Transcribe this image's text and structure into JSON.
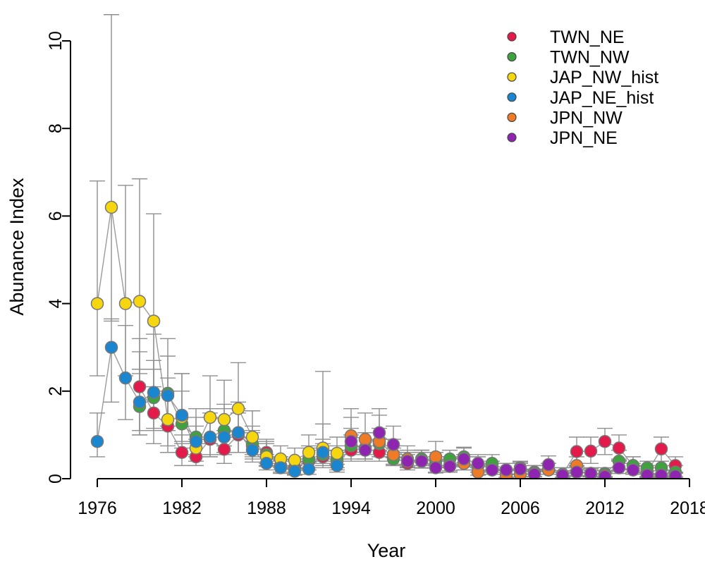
{
  "chart_data": {
    "type": "scatter",
    "title": "",
    "xlabel": "Year",
    "ylabel": "Abunance Index",
    "xlim": [
      1976,
      2018
    ],
    "ylim": [
      0,
      10
    ],
    "x_ticks": [
      1976,
      1982,
      1988,
      1994,
      2000,
      2006,
      2012,
      2018
    ],
    "y_ticks": [
      0,
      2,
      4,
      6,
      8,
      10
    ],
    "grid": false,
    "legend_position": "top-right",
    "series": [
      {
        "name": "TWN_NE",
        "color": "#e41a4a",
        "points": [
          {
            "x": 1979,
            "y": 2.1,
            "lo": 1.1,
            "hi": 3.2
          },
          {
            "x": 1980,
            "y": 1.5,
            "lo": 0.8,
            "hi": 2.5
          },
          {
            "x": 1981,
            "y": 1.2,
            "lo": 0.6,
            "hi": 2.0
          },
          {
            "x": 1982,
            "y": 0.6,
            "lo": 0.3,
            "hi": 1.0
          },
          {
            "x": 1983,
            "y": 0.5,
            "lo": 0.3,
            "hi": 0.9
          },
          {
            "x": 1984,
            "y": 0.9,
            "lo": 0.5,
            "hi": 1.4
          },
          {
            "x": 1985,
            "y": 0.67,
            "lo": 0.35,
            "hi": 1.1
          },
          {
            "x": 1986,
            "y": 1.0,
            "lo": 0.6,
            "hi": 1.5
          },
          {
            "x": 1987,
            "y": 0.75,
            "lo": 0.45,
            "hi": 1.1
          },
          {
            "x": 1988,
            "y": 0.6,
            "lo": 0.35,
            "hi": 0.9
          },
          {
            "x": 1989,
            "y": 0.3,
            "lo": 0.15,
            "hi": 0.5
          },
          {
            "x": 1990,
            "y": 0.25,
            "lo": 0.1,
            "hi": 0.45
          },
          {
            "x": 1991,
            "y": 0.4,
            "lo": 0.2,
            "hi": 0.7
          },
          {
            "x": 1992,
            "y": 0.5,
            "lo": 0.25,
            "hi": 0.8
          },
          {
            "x": 1993,
            "y": 0.4,
            "lo": 0.2,
            "hi": 0.65
          },
          {
            "x": 1994,
            "y": 0.65,
            "lo": 0.4,
            "hi": 1.0
          },
          {
            "x": 1995,
            "y": 0.7,
            "lo": 0.45,
            "hi": 1.05
          },
          {
            "x": 1996,
            "y": 0.6,
            "lo": 0.4,
            "hi": 0.9
          },
          {
            "x": 1997,
            "y": 0.5,
            "lo": 0.3,
            "hi": 0.75
          },
          {
            "x": 1998,
            "y": 0.35,
            "lo": 0.2,
            "hi": 0.55
          },
          {
            "x": 1999,
            "y": 0.4,
            "lo": 0.25,
            "hi": 0.6
          },
          {
            "x": 2000,
            "y": 0.3,
            "lo": 0.15,
            "hi": 0.5
          },
          {
            "x": 2001,
            "y": 0.3,
            "lo": 0.15,
            "hi": 0.5
          },
          {
            "x": 2002,
            "y": 0.35,
            "lo": 0.2,
            "hi": 0.55
          },
          {
            "x": 2003,
            "y": 0.3,
            "lo": 0.15,
            "hi": 0.5
          },
          {
            "x": 2004,
            "y": 0.25,
            "lo": 0.1,
            "hi": 0.4
          },
          {
            "x": 2005,
            "y": 0.2,
            "lo": 0.1,
            "hi": 0.35
          },
          {
            "x": 2006,
            "y": 0.2,
            "lo": 0.1,
            "hi": 0.35
          },
          {
            "x": 2007,
            "y": 0.15,
            "lo": 0.05,
            "hi": 0.3
          },
          {
            "x": 2008,
            "y": 0.2,
            "lo": 0.1,
            "hi": 0.35
          },
          {
            "x": 2009,
            "y": 0.1,
            "lo": 0.03,
            "hi": 0.25
          },
          {
            "x": 2010,
            "y": 0.62,
            "lo": 0.35,
            "hi": 0.95
          },
          {
            "x": 2011,
            "y": 0.63,
            "lo": 0.35,
            "hi": 0.95
          },
          {
            "x": 2012,
            "y": 0.85,
            "lo": 0.55,
            "hi": 1.15
          },
          {
            "x": 2013,
            "y": 0.7,
            "lo": 0.45,
            "hi": 1.0
          },
          {
            "x": 2014,
            "y": 0.3,
            "lo": 0.15,
            "hi": 0.5
          },
          {
            "x": 2015,
            "y": 0.15,
            "lo": 0.05,
            "hi": 0.3
          },
          {
            "x": 2016,
            "y": 0.68,
            "lo": 0.4,
            "hi": 0.95
          },
          {
            "x": 2017,
            "y": 0.3,
            "lo": 0.15,
            "hi": 0.5
          }
        ]
      },
      {
        "name": "TWN_NW",
        "color": "#3ea33e",
        "points": [
          {
            "x": 1979,
            "y": 1.65,
            "lo": 1.0,
            "hi": 2.5
          },
          {
            "x": 1980,
            "y": 1.85,
            "lo": 1.1,
            "hi": 2.7
          },
          {
            "x": 1981,
            "y": 1.95,
            "lo": 1.2,
            "hi": 2.8
          },
          {
            "x": 1982,
            "y": 1.25,
            "lo": 0.7,
            "hi": 2.0
          },
          {
            "x": 1983,
            "y": 0.95,
            "lo": 0.5,
            "hi": 1.6
          },
          {
            "x": 1984,
            "y": 0.95,
            "lo": 0.5,
            "hi": 1.5
          },
          {
            "x": 1985,
            "y": 1.1,
            "lo": 0.6,
            "hi": 1.7
          },
          {
            "x": 1986,
            "y": 1.05,
            "lo": 0.6,
            "hi": 1.6
          },
          {
            "x": 1987,
            "y": 0.8,
            "lo": 0.5,
            "hi": 1.2
          },
          {
            "x": 1988,
            "y": 0.55,
            "lo": 0.3,
            "hi": 0.85
          },
          {
            "x": 1989,
            "y": 0.3,
            "lo": 0.15,
            "hi": 0.5
          },
          {
            "x": 1990,
            "y": 0.2,
            "lo": 0.1,
            "hi": 0.4
          },
          {
            "x": 1991,
            "y": 0.45,
            "lo": 0.25,
            "hi": 0.75
          },
          {
            "x": 1992,
            "y": 0.55,
            "lo": 0.3,
            "hi": 0.9
          },
          {
            "x": 1993,
            "y": 0.45,
            "lo": 0.25,
            "hi": 0.75
          },
          {
            "x": 1994,
            "y": 0.75,
            "lo": 0.45,
            "hi": 1.15
          },
          {
            "x": 1995,
            "y": 0.7,
            "lo": 0.45,
            "hi": 1.05
          },
          {
            "x": 1996,
            "y": 0.8,
            "lo": 0.5,
            "hi": 1.15
          },
          {
            "x": 1997,
            "y": 0.45,
            "lo": 0.3,
            "hi": 0.7
          },
          {
            "x": 1998,
            "y": 0.4,
            "lo": 0.25,
            "hi": 0.6
          },
          {
            "x": 1999,
            "y": 0.45,
            "lo": 0.3,
            "hi": 0.65
          },
          {
            "x": 2000,
            "y": 0.4,
            "lo": 0.25,
            "hi": 0.6
          },
          {
            "x": 2001,
            "y": 0.45,
            "lo": 0.3,
            "hi": 0.65
          },
          {
            "x": 2002,
            "y": 0.5,
            "lo": 0.3,
            "hi": 0.7
          },
          {
            "x": 2003,
            "y": 0.3,
            "lo": 0.15,
            "hi": 0.5
          },
          {
            "x": 2004,
            "y": 0.35,
            "lo": 0.2,
            "hi": 0.55
          },
          {
            "x": 2005,
            "y": 0.2,
            "lo": 0.1,
            "hi": 0.35
          },
          {
            "x": 2006,
            "y": 0.25,
            "lo": 0.1,
            "hi": 0.4
          },
          {
            "x": 2007,
            "y": 0.15,
            "lo": 0.05,
            "hi": 0.3
          },
          {
            "x": 2008,
            "y": 0.2,
            "lo": 0.1,
            "hi": 0.35
          },
          {
            "x": 2009,
            "y": 0.1,
            "lo": 0.03,
            "hi": 0.25
          },
          {
            "x": 2010,
            "y": 0.15,
            "lo": 0.05,
            "hi": 0.3
          },
          {
            "x": 2011,
            "y": 0.12,
            "lo": 0.05,
            "hi": 0.25
          },
          {
            "x": 2012,
            "y": 0.12,
            "lo": 0.05,
            "hi": 0.25
          },
          {
            "x": 2013,
            "y": 0.4,
            "lo": 0.2,
            "hi": 0.65
          },
          {
            "x": 2014,
            "y": 0.3,
            "lo": 0.15,
            "hi": 0.5
          },
          {
            "x": 2015,
            "y": 0.25,
            "lo": 0.1,
            "hi": 0.4
          },
          {
            "x": 2016,
            "y": 0.25,
            "lo": 0.1,
            "hi": 0.4
          },
          {
            "x": 2017,
            "y": 0.15,
            "lo": 0.05,
            "hi": 0.3
          }
        ]
      },
      {
        "name": "JAP_NW_hist",
        "color": "#f5d60f",
        "points": [
          {
            "x": 1976,
            "y": 4.0,
            "lo": 2.35,
            "hi": 6.8
          },
          {
            "x": 1977,
            "y": 6.2,
            "lo": 3.6,
            "hi": 10.6
          },
          {
            "x": 1978,
            "y": 4.0,
            "lo": 2.35,
            "hi": 6.7
          },
          {
            "x": 1979,
            "y": 4.05,
            "lo": 2.4,
            "hi": 6.85
          },
          {
            "x": 1980,
            "y": 3.6,
            "lo": 2.1,
            "hi": 6.05
          },
          {
            "x": 1981,
            "y": 1.35,
            "lo": 0.75,
            "hi": 2.3
          },
          {
            "x": 1982,
            "y": 1.4,
            "lo": 0.8,
            "hi": 2.4
          },
          {
            "x": 1983,
            "y": 0.7,
            "lo": 0.4,
            "hi": 1.2
          },
          {
            "x": 1984,
            "y": 1.4,
            "lo": 0.8,
            "hi": 2.35
          },
          {
            "x": 1985,
            "y": 1.35,
            "lo": 0.75,
            "hi": 2.25
          },
          {
            "x": 1986,
            "y": 1.6,
            "lo": 0.95,
            "hi": 2.65
          },
          {
            "x": 1987,
            "y": 0.95,
            "lo": 0.55,
            "hi": 1.55
          },
          {
            "x": 1988,
            "y": 0.5,
            "lo": 0.28,
            "hi": 0.8
          },
          {
            "x": 1989,
            "y": 0.45,
            "lo": 0.25,
            "hi": 0.75
          },
          {
            "x": 1990,
            "y": 0.42,
            "lo": 0.23,
            "hi": 0.7
          },
          {
            "x": 1991,
            "y": 0.6,
            "lo": 0.35,
            "hi": 1.0
          },
          {
            "x": 1992,
            "y": 0.7,
            "lo": 0.4,
            "hi": 1.25
          },
          {
            "x": 1993,
            "y": 0.58,
            "lo": 0.33,
            "hi": 0.95
          }
        ]
      },
      {
        "name": "JAP_NE_hist",
        "color": "#1a86d0",
        "points": [
          {
            "x": 1976,
            "y": 0.85,
            "lo": 0.5,
            "hi": 1.5
          },
          {
            "x": 1977,
            "y": 3.0,
            "lo": 1.75,
            "hi": 3.65
          },
          {
            "x": 1978,
            "y": 2.3,
            "lo": 1.35,
            "hi": 3.5
          },
          {
            "x": 1979,
            "y": 1.75,
            "lo": 1.0,
            "hi": 2.9
          },
          {
            "x": 1980,
            "y": 1.97,
            "lo": 1.15,
            "hi": 3.3
          },
          {
            "x": 1981,
            "y": 1.9,
            "lo": 1.1,
            "hi": 3.2
          },
          {
            "x": 1982,
            "y": 1.45,
            "lo": 0.85,
            "hi": 2.4
          },
          {
            "x": 1983,
            "y": 0.85,
            "lo": 0.5,
            "hi": 1.4
          },
          {
            "x": 1984,
            "y": 0.95,
            "lo": 0.55,
            "hi": 1.6
          },
          {
            "x": 1985,
            "y": 0.95,
            "lo": 0.55,
            "hi": 1.6
          },
          {
            "x": 1986,
            "y": 1.05,
            "lo": 0.6,
            "hi": 1.75
          },
          {
            "x": 1987,
            "y": 0.65,
            "lo": 0.38,
            "hi": 1.05
          },
          {
            "x": 1988,
            "y": 0.35,
            "lo": 0.2,
            "hi": 0.55
          },
          {
            "x": 1989,
            "y": 0.25,
            "lo": 0.12,
            "hi": 0.4
          },
          {
            "x": 1990,
            "y": 0.17,
            "lo": 0.08,
            "hi": 0.3
          },
          {
            "x": 1991,
            "y": 0.22,
            "lo": 0.1,
            "hi": 0.38
          },
          {
            "x": 1992,
            "y": 0.6,
            "lo": 0.35,
            "hi": 2.45
          },
          {
            "x": 1993,
            "y": 0.3,
            "lo": 0.15,
            "hi": 0.5
          }
        ]
      },
      {
        "name": "JPN_NW",
        "color": "#f07b26",
        "points": [
          {
            "x": 1994,
            "y": 0.98,
            "lo": 0.6,
            "hi": 1.6
          },
          {
            "x": 1995,
            "y": 0.9,
            "lo": 0.55,
            "hi": 1.5
          },
          {
            "x": 1996,
            "y": 0.85,
            "lo": 0.5,
            "hi": 1.45
          },
          {
            "x": 1997,
            "y": 0.55,
            "lo": 0.33,
            "hi": 0.9
          },
          {
            "x": 1998,
            "y": 0.45,
            "lo": 0.27,
            "hi": 0.75
          },
          {
            "x": 1999,
            "y": 0.4,
            "lo": 0.24,
            "hi": 0.65
          },
          {
            "x": 2000,
            "y": 0.5,
            "lo": 0.3,
            "hi": 0.85
          },
          {
            "x": 2001,
            "y": 0.3,
            "lo": 0.18,
            "hi": 0.5
          },
          {
            "x": 2002,
            "y": 0.35,
            "lo": 0.2,
            "hi": 0.55
          },
          {
            "x": 2003,
            "y": 0.15,
            "lo": 0.08,
            "hi": 0.3
          },
          {
            "x": 2004,
            "y": 0.2,
            "lo": 0.1,
            "hi": 0.35
          },
          {
            "x": 2005,
            "y": 0.08,
            "lo": 0.03,
            "hi": 0.18
          },
          {
            "x": 2006,
            "y": 0.1,
            "lo": 0.04,
            "hi": 0.2
          },
          {
            "x": 2007,
            "y": 0.12,
            "lo": 0.05,
            "hi": 0.22
          },
          {
            "x": 2008,
            "y": 0.2,
            "lo": 0.1,
            "hi": 0.35
          },
          {
            "x": 2009,
            "y": 0.08,
            "lo": 0.03,
            "hi": 0.18
          },
          {
            "x": 2010,
            "y": 0.3,
            "lo": 0.15,
            "hi": 0.5
          },
          {
            "x": 2011,
            "y": 0.1,
            "lo": 0.04,
            "hi": 0.2
          },
          {
            "x": 2012,
            "y": 0.08,
            "lo": 0.03,
            "hi": 0.18
          },
          {
            "x": 2013,
            "y": 0.25,
            "lo": 0.12,
            "hi": 0.4
          },
          {
            "x": 2014,
            "y": 0.2,
            "lo": 0.1,
            "hi": 0.35
          },
          {
            "x": 2015,
            "y": 0.05,
            "lo": 0.02,
            "hi": 0.12
          },
          {
            "x": 2016,
            "y": 0.05,
            "lo": 0.02,
            "hi": 0.12
          },
          {
            "x": 2017,
            "y": 0.05,
            "lo": 0.02,
            "hi": 0.12
          }
        ]
      },
      {
        "name": "JPN_NE",
        "color": "#8e24b0",
        "points": [
          {
            "x": 1994,
            "y": 0.85,
            "lo": 0.55,
            "hi": 1.4
          },
          {
            "x": 1995,
            "y": 0.65,
            "lo": 0.4,
            "hi": 1.05
          },
          {
            "x": 1996,
            "y": 1.05,
            "lo": 0.65,
            "hi": 1.6
          },
          {
            "x": 1997,
            "y": 0.78,
            "lo": 0.48,
            "hi": 1.2
          },
          {
            "x": 1998,
            "y": 0.4,
            "lo": 0.25,
            "hi": 0.65
          },
          {
            "x": 1999,
            "y": 0.4,
            "lo": 0.25,
            "hi": 0.65
          },
          {
            "x": 2000,
            "y": 0.25,
            "lo": 0.13,
            "hi": 0.42
          },
          {
            "x": 2001,
            "y": 0.28,
            "lo": 0.15,
            "hi": 0.45
          },
          {
            "x": 2002,
            "y": 0.45,
            "lo": 0.27,
            "hi": 0.72
          },
          {
            "x": 2003,
            "y": 0.35,
            "lo": 0.2,
            "hi": 0.55
          },
          {
            "x": 2004,
            "y": 0.2,
            "lo": 0.1,
            "hi": 0.35
          },
          {
            "x": 2005,
            "y": 0.2,
            "lo": 0.1,
            "hi": 0.35
          },
          {
            "x": 2006,
            "y": 0.22,
            "lo": 0.11,
            "hi": 0.38
          },
          {
            "x": 2007,
            "y": 0.1,
            "lo": 0.04,
            "hi": 0.2
          },
          {
            "x": 2008,
            "y": 0.32,
            "lo": 0.18,
            "hi": 0.52
          },
          {
            "x": 2009,
            "y": 0.08,
            "lo": 0.03,
            "hi": 0.18
          },
          {
            "x": 2010,
            "y": 0.15,
            "lo": 0.07,
            "hi": 0.28
          },
          {
            "x": 2011,
            "y": 0.12,
            "lo": 0.05,
            "hi": 0.23
          },
          {
            "x": 2012,
            "y": 0.05,
            "lo": 0.02,
            "hi": 0.12
          },
          {
            "x": 2013,
            "y": 0.25,
            "lo": 0.12,
            "hi": 0.42
          },
          {
            "x": 2014,
            "y": 0.2,
            "lo": 0.1,
            "hi": 0.35
          },
          {
            "x": 2015,
            "y": 0.08,
            "lo": 0.03,
            "hi": 0.18
          },
          {
            "x": 2016,
            "y": 0.08,
            "lo": 0.03,
            "hi": 0.18
          },
          {
            "x": 2017,
            "y": 0.06,
            "lo": 0.02,
            "hi": 0.14
          }
        ]
      }
    ]
  }
}
